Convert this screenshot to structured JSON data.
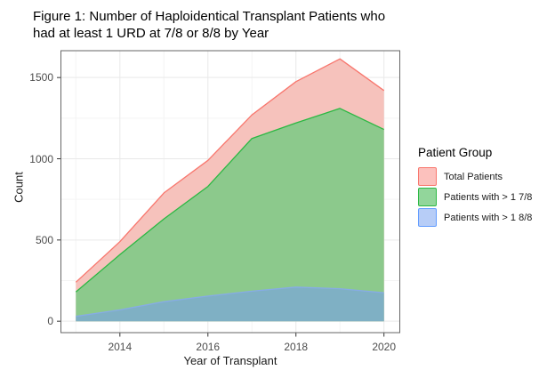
{
  "figure": {
    "background": "#ffffff"
  },
  "chart_data": {
    "type": "area",
    "title": "Figure 1: Number of Haploidentical Transplant Patients who\nhad at least 1 URD at 7/8 or 8/8 by Year",
    "xlabel": "Year of Transplant",
    "ylabel": "Count",
    "legend_title": "Patient Group",
    "legend_position": "right",
    "grid": true,
    "x": [
      2013,
      2014,
      2015,
      2016,
      2017,
      2018,
      2019,
      2020
    ],
    "series": [
      {
        "name": "Total Patients",
        "values": [
          240,
          490,
          790,
          990,
          1270,
          1475,
          1615,
          1420
        ],
        "fill": "#F6C2BC",
        "stroke": "#F8766D"
      },
      {
        "name": "Patients with > 1 7/8",
        "values": [
          180,
          410,
          630,
          830,
          1125,
          1220,
          1310,
          1180
        ],
        "fill": "#8CC98C",
        "stroke": "#2BB843"
      },
      {
        "name": "Patients with > 1 8/8",
        "values": [
          30,
          70,
          120,
          155,
          185,
          210,
          200,
          175
        ],
        "fill": "#7FB0C4",
        "stroke": "#87ACE5"
      }
    ],
    "legend_swatches": [
      {
        "fill": "#FCC1BD",
        "stroke": "#F8766D"
      },
      {
        "fill": "#92D69B",
        "stroke": "#2BB843"
      },
      {
        "fill": "#B7CDF7",
        "stroke": "#619CFF"
      }
    ],
    "x_ticks": [
      2014,
      2016,
      2018,
      2020
    ],
    "x_tick_labels": [
      "2014",
      "2016",
      "2018",
      "2020"
    ],
    "x_minor_ticks": [
      2013,
      2015,
      2017,
      2019
    ],
    "y_ticks": [
      0,
      500,
      1000,
      1500
    ],
    "y_tick_labels": [
      "0",
      "500",
      "1000",
      "1500"
    ],
    "y_minor_ticks": [
      250,
      750,
      1250
    ],
    "xlim": [
      2012.65,
      2020.37
    ],
    "ylim": [
      -73,
      1668
    ]
  }
}
